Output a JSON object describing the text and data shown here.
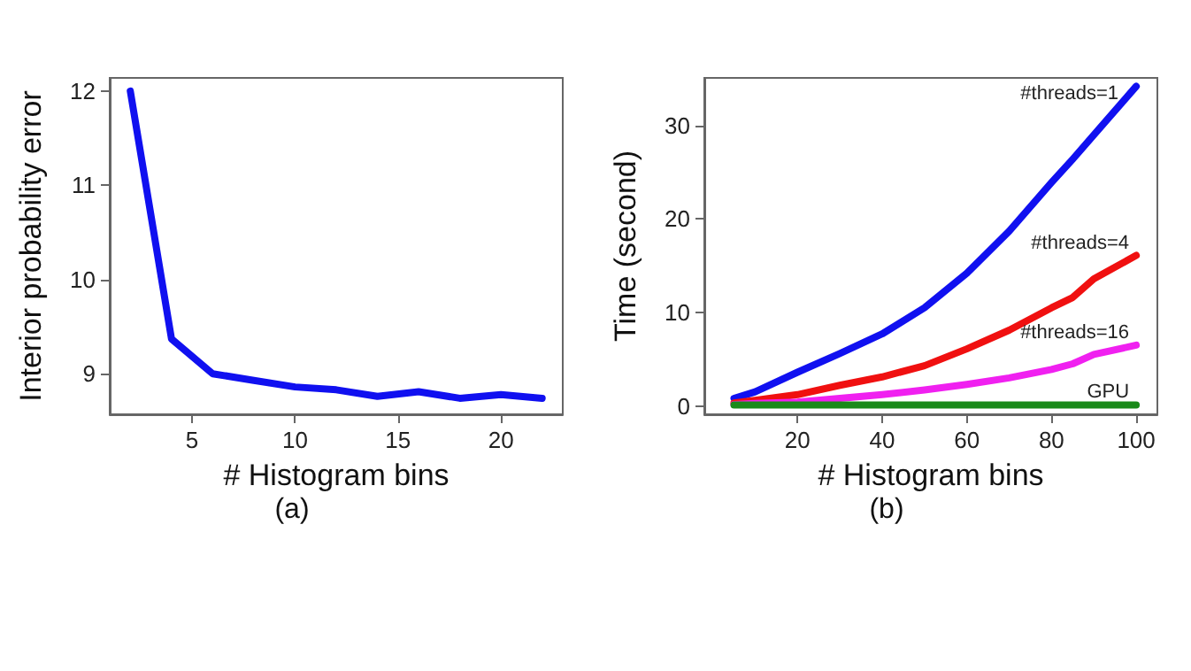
{
  "chart_data": [
    {
      "type": "line",
      "xlabel": "# Histogram bins",
      "ylabel": "Interior probability error",
      "annotations": [
        "(a)"
      ],
      "xlim": [
        1,
        23
      ],
      "xticks": [
        5,
        10,
        15,
        20
      ],
      "ylim": [
        8.57,
        12.14
      ],
      "yticks": [
        9,
        10,
        11,
        12
      ],
      "grid": false,
      "legend": false,
      "marker": "none",
      "line_style": "solid",
      "x": [
        2,
        4,
        6,
        8,
        10,
        12,
        14,
        16,
        18,
        20,
        22
      ],
      "series": [
        {
          "color": "#1010f0",
          "values": [
            12.0,
            9.37,
            9.0,
            8.93,
            8.86,
            8.83,
            8.76,
            8.81,
            8.74,
            8.78,
            8.74
          ]
        }
      ]
    },
    {
      "type": "line",
      "xlabel": "# Histogram bins",
      "ylabel": "Time (second)",
      "annotations": [
        "(b)"
      ],
      "xlim": [
        -2,
        105
      ],
      "xticks": [
        20,
        40,
        60,
        80,
        100
      ],
      "ylim": [
        -0.9,
        35.1
      ],
      "yticks": [
        0,
        10,
        20,
        30
      ],
      "grid": false,
      "legend": false,
      "marker": "none",
      "line_style": "solid",
      "x": [
        5,
        10,
        20,
        30,
        40,
        50,
        60,
        70,
        80,
        85,
        90,
        100
      ],
      "series": [
        {
          "name": "#threads=1",
          "color": "#1010f0",
          "values": [
            0.8,
            1.5,
            3.6,
            5.6,
            7.7,
            10.5,
            14.2,
            18.7,
            23.9,
            26.4,
            29.0,
            34.2
          ]
        },
        {
          "name": "#threads=4",
          "color": "#f01010",
          "values": [
            0.3,
            0.6,
            1.2,
            2.2,
            3.1,
            4.3,
            6.1,
            8.1,
            10.5,
            11.6,
            13.6,
            16.1
          ]
        },
        {
          "name": "#threads=16",
          "color": "#f020f0",
          "values": [
            0.15,
            0.25,
            0.4,
            0.8,
            1.2,
            1.7,
            2.3,
            3.0,
            3.9,
            4.5,
            5.5,
            6.5
          ]
        },
        {
          "name": "GPU",
          "color": "#1a8a1a",
          "values": [
            0.1,
            0.1,
            0.1,
            0.1,
            0.1,
            0.1,
            0.1,
            0.1,
            0.1,
            0.1,
            0.1,
            0.1
          ]
        }
      ]
    }
  ]
}
